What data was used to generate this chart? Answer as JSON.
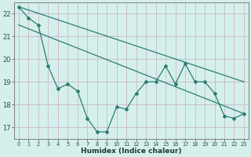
{
  "title": "",
  "xlabel": "Humidex (Indice chaleur)",
  "ylabel": "",
  "background_color": "#d5f0ec",
  "grid_color": "#c8b8c8",
  "line_color": "#2d7d6e",
  "xlim": [
    -0.5,
    23.5
  ],
  "ylim": [
    16.5,
    22.5
  ],
  "yticks": [
    17,
    18,
    19,
    20,
    21,
    22
  ],
  "xticks": [
    0,
    1,
    2,
    3,
    4,
    5,
    6,
    7,
    8,
    9,
    10,
    11,
    12,
    13,
    14,
    15,
    16,
    17,
    18,
    19,
    20,
    21,
    22,
    23
  ],
  "series1": [
    22.3,
    21.8,
    21.5,
    19.7,
    18.7,
    18.9,
    18.6,
    17.4,
    16.8,
    16.8,
    17.9,
    17.8,
    18.5,
    19.0,
    19.0,
    19.7,
    18.9,
    19.8,
    19.0,
    19.0,
    18.5,
    17.5,
    17.4,
    17.6
  ],
  "trend1_x": [
    0,
    23
  ],
  "trend1_y": [
    22.3,
    19.0
  ],
  "trend2_x": [
    0,
    23
  ],
  "trend2_y": [
    21.5,
    17.6
  ]
}
